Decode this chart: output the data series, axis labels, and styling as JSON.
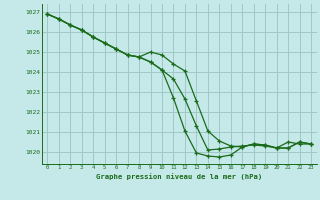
{
  "background_color": "#c5e8e8",
  "grid_color": "#a0c8c8",
  "line_color": "#1a6b1a",
  "marker_color": "#1a6b1a",
  "xlabel": "Graphe pression niveau de la mer (hPa)",
  "xlabel_color": "#1a6b1a",
  "ylabel_values": [
    1020,
    1021,
    1022,
    1023,
    1024,
    1025,
    1026,
    1027
  ],
  "xlim": [
    -0.5,
    23.5
  ],
  "ylim": [
    1019.4,
    1027.4
  ],
  "xticks": [
    0,
    1,
    2,
    3,
    4,
    5,
    6,
    7,
    8,
    9,
    10,
    11,
    12,
    13,
    14,
    15,
    16,
    17,
    18,
    19,
    20,
    21,
    22,
    23
  ],
  "series": [
    [
      1026.9,
      1026.65,
      1026.35,
      1026.1,
      1025.75,
      1025.45,
      1025.15,
      1024.85,
      1024.75,
      1025.0,
      1024.85,
      1024.4,
      1024.05,
      1022.55,
      1021.05,
      1020.55,
      1020.3,
      1020.25,
      1020.4,
      1020.35,
      1020.2,
      1020.2,
      1020.5,
      1020.4
    ],
    [
      1026.9,
      1026.65,
      1026.35,
      1026.1,
      1025.75,
      1025.45,
      1025.15,
      1024.85,
      1024.75,
      1024.5,
      1024.1,
      1022.7,
      1021.05,
      1019.95,
      1019.8,
      1019.75,
      1019.85,
      1020.25,
      1020.4,
      1020.35,
      1020.2,
      1020.2,
      1020.5,
      1020.4
    ],
    [
      1026.9,
      1026.65,
      1026.35,
      1026.1,
      1025.75,
      1025.45,
      1025.15,
      1024.85,
      1024.75,
      1024.5,
      1024.1,
      1023.65,
      1022.65,
      1021.3,
      1020.1,
      1020.15,
      1020.25,
      1020.3,
      1020.35,
      1020.3,
      1020.2,
      1020.5,
      1020.4,
      1020.4
    ]
  ],
  "figsize": [
    3.2,
    2.0
  ],
  "dpi": 100
}
